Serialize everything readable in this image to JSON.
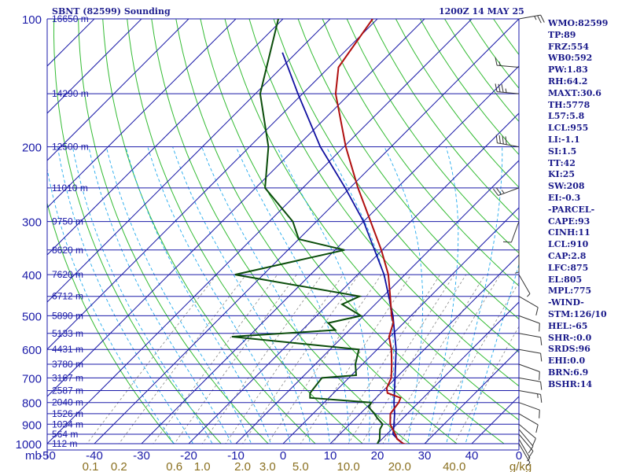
{
  "header": {
    "station": "SBNT (82599) Sounding",
    "time": "1200Z 14 MAY 25"
  },
  "indices": [
    "WMO:82599",
    "TP:89",
    "FRZ:554",
    "WB0:592",
    "PW:1.83",
    "RH:64.2",
    "MAXT:30.6",
    "TH:5778",
    "L57:5.8",
    "LCL:955",
    "LI:-1.1",
    "SI:1.5",
    "TT:42",
    "KI:25",
    "SW:208",
    "EI:-0.3",
    "-PARCEL-",
    "CAPE:93",
    "CINH:11",
    "LCL:910",
    "CAP:2.8",
    "LFC:875",
    "EL:805",
    "MPL:775",
    "-WIND-",
    "STM:126/10",
    "HEL:-65",
    "SHR-:0.0",
    "SRDS:96",
    "EHI:0.0",
    "BRN:6.9",
    "BSHR:14"
  ],
  "colors": {
    "isobar": "#1a1aa8",
    "isotherm": "#1a1aa8",
    "dry_adiabat": "#33bb33",
    "moist_adiabat": "#22aaee",
    "mixing_ratio": "#888888",
    "temperature": "#b01010",
    "dewpoint": "#0b4d0b",
    "parcel": "#1010a0",
    "axis_text": "#1a1aa8",
    "mixing_text": "#8a7020",
    "wind": "#333333"
  },
  "chart_data": {
    "type": "skew-t",
    "pressure_unit": "mb",
    "y_axis_label": "mb",
    "x_axis_unit": "g/kg",
    "pressure_range": [
      1000,
      100
    ],
    "temperature_range": [
      -50,
      50
    ],
    "pressure_ticks": [
      100,
      200,
      300,
      400,
      500,
      600,
      700,
      800,
      900,
      1000
    ],
    "temperature_ticks": [
      -50,
      -40,
      -30,
      -20,
      -10,
      0,
      10,
      20,
      30,
      40,
      50
    ],
    "temperature_tick_labels": [
      "-50",
      "-40",
      "-30",
      "-20",
      "-10",
      "0",
      "10",
      "20",
      "30",
      "40",
      "0"
    ],
    "mixing_ratio_labels": [
      {
        "label": "0.1",
        "value": 0.1
      },
      {
        "label": "0.2",
        "value": 0.2
      },
      {
        "label": "0.6",
        "value": 0.6
      },
      {
        "label": "1.0",
        "value": 1.0
      },
      {
        "label": "2.0",
        "value": 2.0
      },
      {
        "label": "3.0",
        "value": 3.0
      },
      {
        "label": "5.0",
        "value": 5.0
      },
      {
        "label": "10.0",
        "value": 10.0
      },
      {
        "label": "20.0",
        "value": 20.0
      },
      {
        "label": "40.0",
        "value": 40.0
      },
      {
        "label": "g/kg",
        "value": null
      }
    ],
    "heights": [
      {
        "p": 100,
        "label": "16650 m"
      },
      {
        "p": 150,
        "label": "14290 m"
      },
      {
        "p": 200,
        "label": "12500 m"
      },
      {
        "p": 250,
        "label": "11010 m"
      },
      {
        "p": 300,
        "label": "9750 m"
      },
      {
        "p": 350,
        "label": "8620 m"
      },
      {
        "p": 400,
        "label": "7620 m"
      },
      {
        "p": 450,
        "label": "6712 m"
      },
      {
        "p": 500,
        "label": "5890 m"
      },
      {
        "p": 550,
        "label": "5133 m"
      },
      {
        "p": 600,
        "label": "4431 m"
      },
      {
        "p": 650,
        "label": "3780 m"
      },
      {
        "p": 700,
        "label": "3167 m"
      },
      {
        "p": 750,
        "label": "2587 m"
      },
      {
        "p": 800,
        "label": "2040 m"
      },
      {
        "p": 850,
        "label": "1526 m"
      },
      {
        "p": 900,
        "label": "1034 m"
      },
      {
        "p": 950,
        "label": "564 m"
      },
      {
        "p": 1000,
        "label": "112 m"
      }
    ],
    "temperature": [
      {
        "p": 1011,
        "t": 28.0
      },
      {
        "p": 1000,
        "t": 25.5
      },
      {
        "p": 975,
        "t": 23.2
      },
      {
        "p": 950,
        "t": 21.8
      },
      {
        "p": 925,
        "t": 20.2
      },
      {
        "p": 900,
        "t": 18.6
      },
      {
        "p": 850,
        "t": 16.4
      },
      {
        "p": 800,
        "t": 15.8
      },
      {
        "p": 780,
        "t": 15.2
      },
      {
        "p": 760,
        "t": 11.4
      },
      {
        "p": 740,
        "t": 10.2
      },
      {
        "p": 700,
        "t": 9.0
      },
      {
        "p": 650,
        "t": 6.2
      },
      {
        "p": 600,
        "t": 3.0
      },
      {
        "p": 560,
        "t": -0.2
      },
      {
        "p": 520,
        "t": -2.2
      },
      {
        "p": 500,
        "t": -4.1
      },
      {
        "p": 450,
        "t": -8.5
      },
      {
        "p": 400,
        "t": -13.5
      },
      {
        "p": 350,
        "t": -20.2
      },
      {
        "p": 300,
        "t": -28.5
      },
      {
        "p": 250,
        "t": -38.3
      },
      {
        "p": 200,
        "t": -49.6
      },
      {
        "p": 150,
        "t": -63.0
      },
      {
        "p": 130,
        "t": -68.0
      },
      {
        "p": 100,
        "t": -71.0
      }
    ],
    "dewpoint": [
      {
        "p": 1011,
        "t": 22.0
      },
      {
        "p": 1000,
        "t": 20.0
      },
      {
        "p": 975,
        "t": 19.5
      },
      {
        "p": 950,
        "t": 18.5
      },
      {
        "p": 925,
        "t": 17.5
      },
      {
        "p": 900,
        "t": 17.0
      },
      {
        "p": 870,
        "t": 14.5
      },
      {
        "p": 850,
        "t": 13.0
      },
      {
        "p": 820,
        "t": 10.4
      },
      {
        "p": 800,
        "t": 10.0
      },
      {
        "p": 780,
        "t": -4.0
      },
      {
        "p": 760,
        "t": -5.0
      },
      {
        "p": 700,
        "t": -5.7
      },
      {
        "p": 690,
        "t": 1.0
      },
      {
        "p": 650,
        "t": -1.5
      },
      {
        "p": 600,
        "t": -3.9
      },
      {
        "p": 560,
        "t": -33.5
      },
      {
        "p": 540,
        "t": -13.0
      },
      {
        "p": 520,
        "t": -16.0
      },
      {
        "p": 500,
        "t": -10.6
      },
      {
        "p": 470,
        "t": -17.0
      },
      {
        "p": 450,
        "t": -15.0
      },
      {
        "p": 400,
        "t": -46.0
      },
      {
        "p": 350,
        "t": -28.0
      },
      {
        "p": 330,
        "t": -40.0
      },
      {
        "p": 300,
        "t": -45.0
      },
      {
        "p": 250,
        "t": -58.0
      },
      {
        "p": 200,
        "t": -66.0
      },
      {
        "p": 150,
        "t": -79.0
      },
      {
        "p": 100,
        "t": -91.0
      }
    ],
    "parcel": [
      {
        "p": 1000,
        "t": 25.5
      },
      {
        "p": 975,
        "t": 23.3
      },
      {
        "p": 950,
        "t": 21.3
      },
      {
        "p": 910,
        "t": 19.8
      },
      {
        "p": 850,
        "t": 17.3
      },
      {
        "p": 800,
        "t": 14.8
      },
      {
        "p": 700,
        "t": 9.8
      },
      {
        "p": 600,
        "t": 4.0
      },
      {
        "p": 500,
        "t": -3.8
      },
      {
        "p": 400,
        "t": -14.4
      },
      {
        "p": 300,
        "t": -30.0
      },
      {
        "p": 250,
        "t": -41.0
      },
      {
        "p": 200,
        "t": -55.0
      },
      {
        "p": 150,
        "t": -71.0
      },
      {
        "p": 120,
        "t": -83.0
      }
    ],
    "wind_barbs": [
      {
        "p": 100,
        "dir": 80,
        "spd": 25
      },
      {
        "p": 130,
        "dir": 275,
        "spd": 15
      },
      {
        "p": 150,
        "dir": 275,
        "spd": 35
      },
      {
        "p": 200,
        "dir": 280,
        "spd": 40
      },
      {
        "p": 250,
        "dir": 250,
        "spd": 25
      },
      {
        "p": 300,
        "dir": 200,
        "spd": 10
      },
      {
        "p": 350,
        "dir": 180,
        "spd": 5
      },
      {
        "p": 400,
        "dir": 150,
        "spd": 5
      },
      {
        "p": 450,
        "dir": 120,
        "spd": 10
      },
      {
        "p": 500,
        "dir": 110,
        "spd": 10
      },
      {
        "p": 550,
        "dir": 100,
        "spd": 10
      },
      {
        "p": 600,
        "dir": 100,
        "spd": 10
      },
      {
        "p": 650,
        "dir": 110,
        "spd": 10
      },
      {
        "p": 700,
        "dir": 100,
        "spd": 10
      },
      {
        "p": 750,
        "dir": 100,
        "spd": 15
      },
      {
        "p": 800,
        "dir": 110,
        "spd": 10
      },
      {
        "p": 850,
        "dir": 120,
        "spd": 10
      },
      {
        "p": 900,
        "dir": 130,
        "spd": 10
      },
      {
        "p": 925,
        "dir": 140,
        "spd": 10
      },
      {
        "p": 950,
        "dir": 140,
        "spd": 10
      },
      {
        "p": 975,
        "dir": 150,
        "spd": 5
      },
      {
        "p": 1000,
        "dir": 150,
        "spd": 5
      }
    ]
  }
}
